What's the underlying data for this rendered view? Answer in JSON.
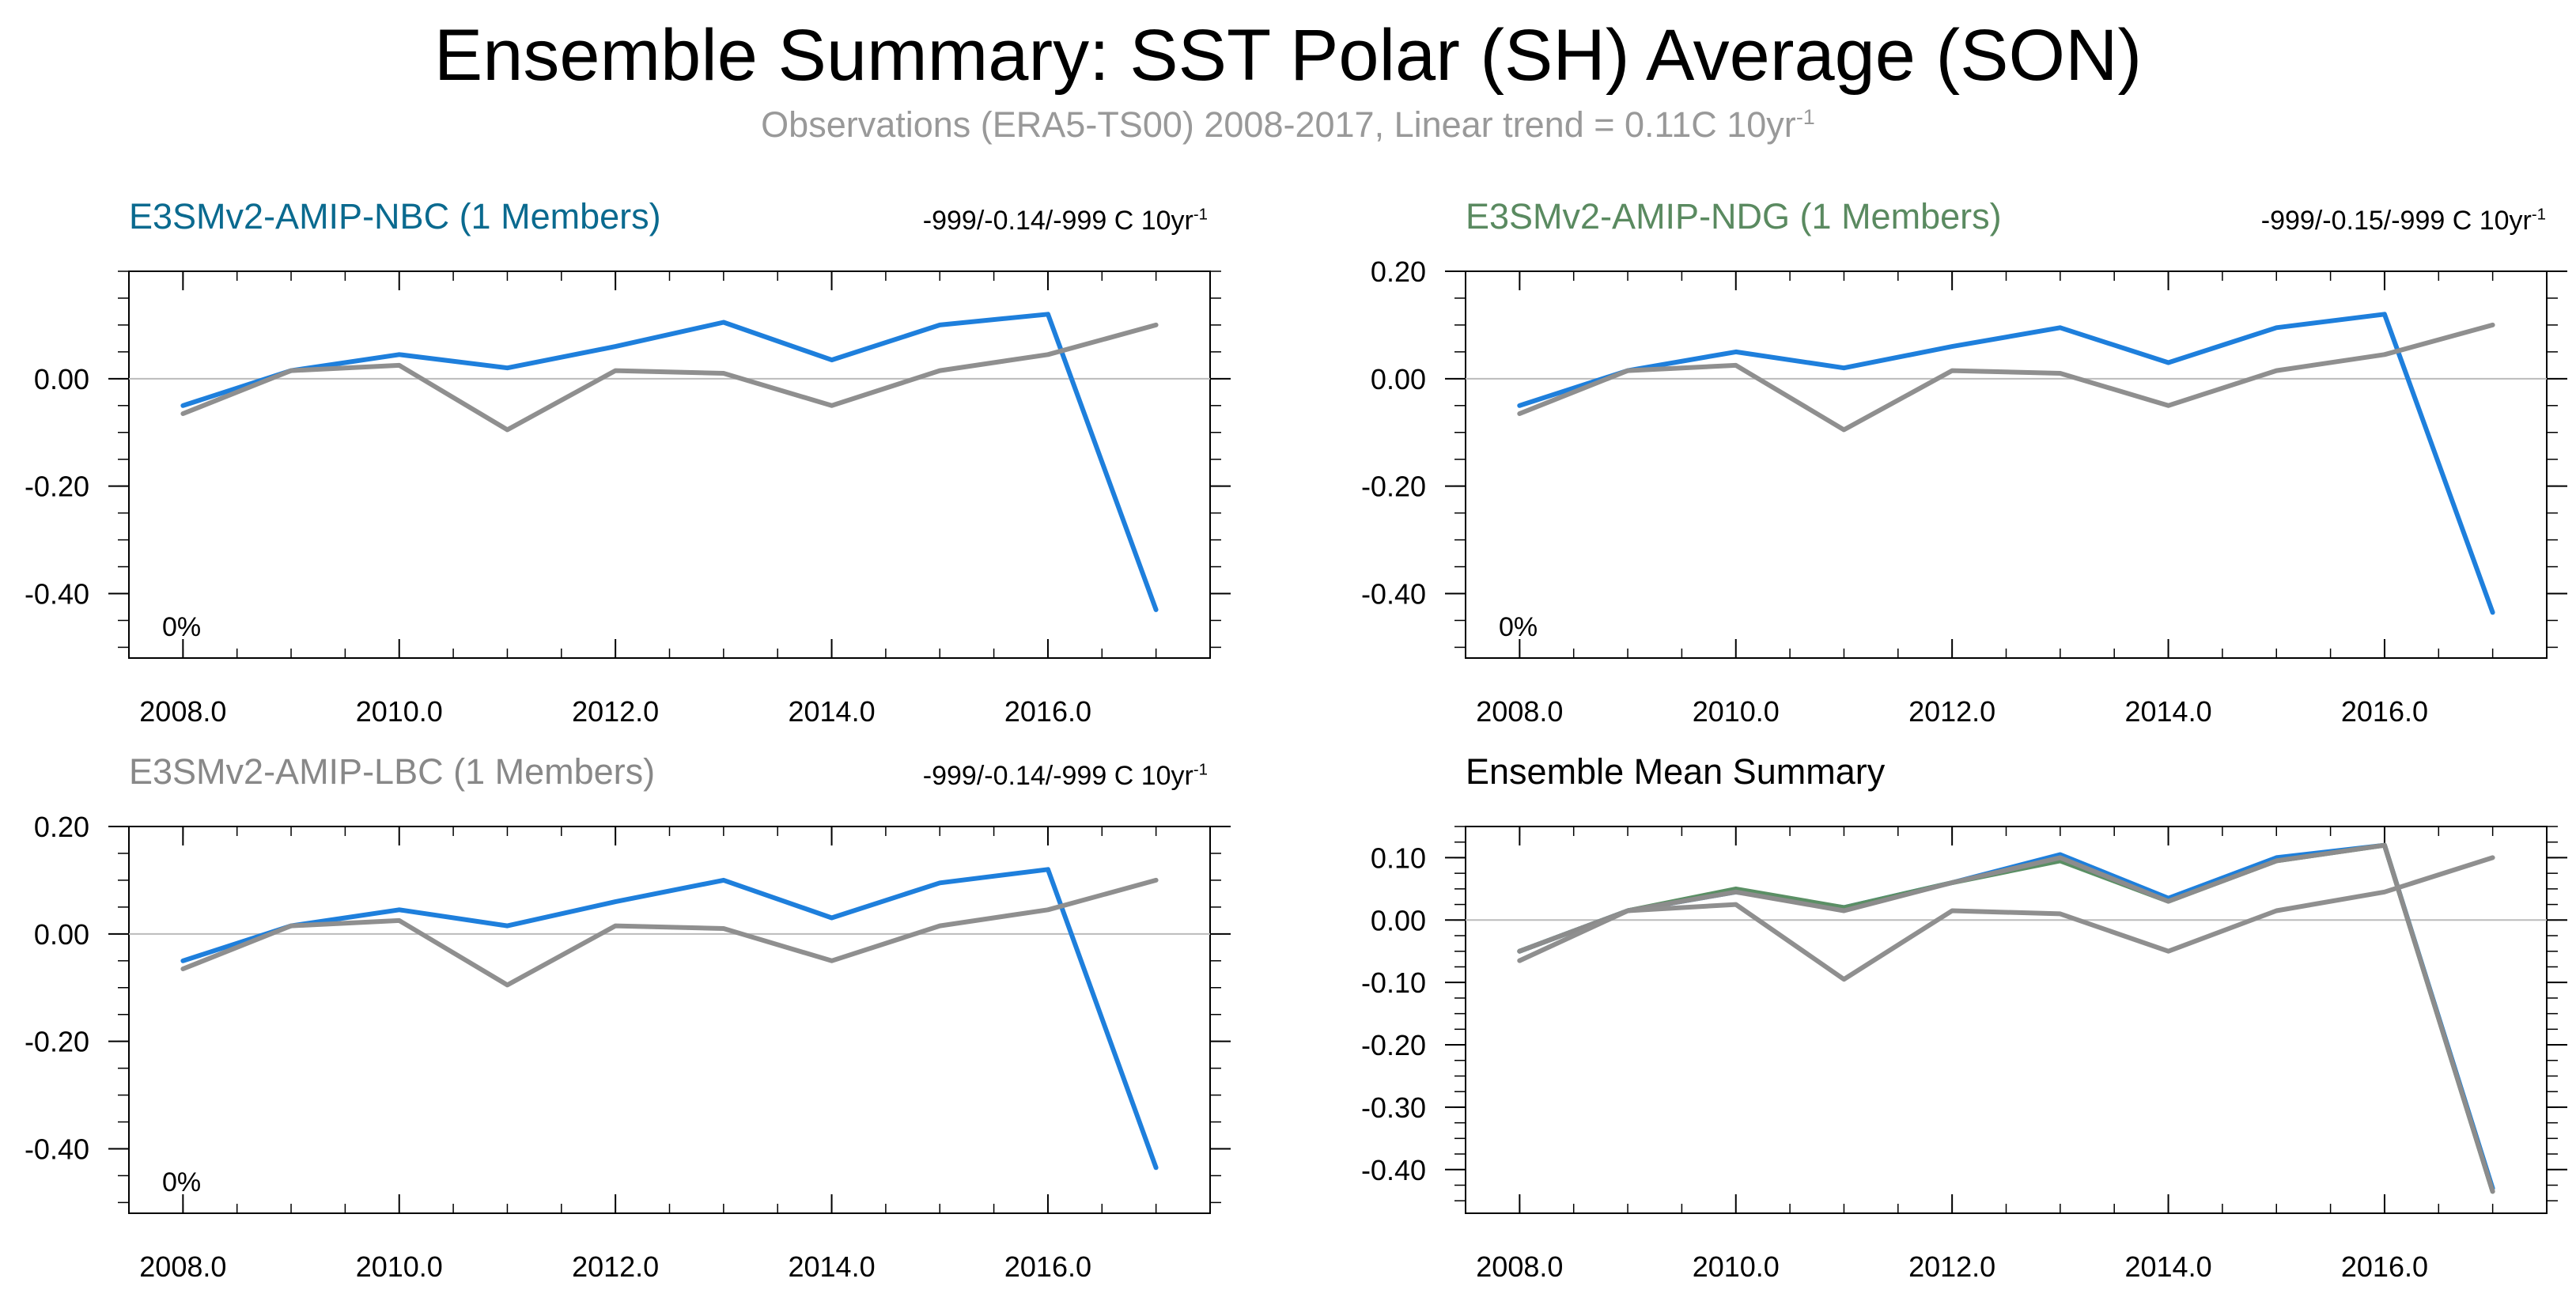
{
  "title": "Ensemble Summary: SST Polar (SH) Average (SON)",
  "subtitle": {
    "text": "Observations (ERA5-TS00) 2008-2017, Linear trend = 0.11C 10yr",
    "exponent": "-1"
  },
  "colors": {
    "nbc": "#1e7fdc",
    "ndg": "#5a8f64",
    "lbc": "#8c8c8c",
    "obs": "#8f8f8f",
    "nbc_title": "#0a6a8f",
    "ndg_title": "#5a8a60",
    "lbc_title": "#888888",
    "mean_title": "#000000"
  },
  "panels": [
    {
      "title": "E3SMv2-AMIP-NBC (1 Members)",
      "stat": "-999/-0.14/-999 C 10yr",
      "stat_exp": "-1",
      "percent": "0%"
    },
    {
      "title": "E3SMv2-AMIP-NDG (1 Members)",
      "stat": "-999/-0.15/-999 C 10yr",
      "stat_exp": "-1",
      "percent": "0%"
    },
    {
      "title": "E3SMv2-AMIP-LBC (1 Members)",
      "stat": "-999/-0.14/-999 C 10yr",
      "stat_exp": "-1",
      "percent": "0%"
    },
    {
      "title": "Ensemble Mean Summary",
      "stat": "",
      "stat_exp": "",
      "percent": ""
    }
  ],
  "chart_data": [
    {
      "type": "line",
      "title": "E3SMv2-AMIP-NBC (1 Members)",
      "x": [
        2008,
        2009,
        2010,
        2011,
        2012,
        2013,
        2014,
        2015,
        2016,
        2017
      ],
      "xticks": [
        "2008.0",
        "2010.0",
        "2012.0",
        "2014.0",
        "2016.0"
      ],
      "yticks": [
        "0.00",
        "-0.20",
        "-0.40"
      ],
      "ylim": [
        -0.52,
        0.2
      ],
      "series": [
        {
          "name": "",
          "values": [
            -0.05,
            0.015,
            0.045,
            0.02,
            0.06,
            0.105,
            0.035,
            0.1,
            0.12,
            -0.43
          ]
        },
        {
          "name": "",
          "values": [
            -0.065,
            0.015,
            0.025,
            -0.095,
            0.015,
            0.01,
            -0.05,
            0.015,
            0.045,
            0.1
          ]
        }
      ]
    },
    {
      "type": "line",
      "title": "E3SMv2-AMIP-NDG (1 Members)",
      "x": [
        2008,
        2009,
        2010,
        2011,
        2012,
        2013,
        2014,
        2015,
        2016,
        2017
      ],
      "xticks": [
        "2008.0",
        "2010.0",
        "2012.0",
        "2014.0",
        "2016.0"
      ],
      "yticks": [
        "0.20",
        "0.00",
        "-0.20",
        "-0.40"
      ],
      "ylim": [
        -0.52,
        0.2
      ],
      "series": [
        {
          "name": "",
          "values": [
            -0.05,
            0.015,
            0.05,
            0.02,
            0.06,
            0.095,
            0.03,
            0.095,
            0.12,
            -0.435
          ]
        },
        {
          "name": "",
          "values": [
            -0.065,
            0.015,
            0.025,
            -0.095,
            0.015,
            0.01,
            -0.05,
            0.015,
            0.045,
            0.1
          ]
        }
      ]
    },
    {
      "type": "line",
      "title": "E3SMv2-AMIP-LBC (1 Members)",
      "x": [
        2008,
        2009,
        2010,
        2011,
        2012,
        2013,
        2014,
        2015,
        2016,
        2017
      ],
      "xticks": [
        "2008.0",
        "2010.0",
        "2012.0",
        "2014.0",
        "2016.0"
      ],
      "yticks": [
        "0.20",
        "0.00",
        "-0.20",
        "-0.40"
      ],
      "ylim": [
        -0.52,
        0.2
      ],
      "series": [
        {
          "name": "",
          "values": [
            -0.05,
            0.015,
            0.045,
            0.015,
            0.06,
            0.1,
            0.03,
            0.095,
            0.12,
            -0.435
          ]
        },
        {
          "name": "",
          "values": [
            -0.065,
            0.015,
            0.025,
            -0.095,
            0.015,
            0.01,
            -0.05,
            0.015,
            0.045,
            0.1
          ]
        }
      ]
    },
    {
      "type": "line",
      "title": "Ensemble Mean Summary",
      "x": [
        2008,
        2009,
        2010,
        2011,
        2012,
        2013,
        2014,
        2015,
        2016,
        2017
      ],
      "xticks": [
        "2008.0",
        "2010.0",
        "2012.0",
        "2014.0",
        "2016.0"
      ],
      "yticks": [
        "0.10",
        "0.00",
        "-0.10",
        "-0.20",
        "-0.30",
        "-0.40"
      ],
      "ylim": [
        -0.47,
        0.15
      ],
      "series": [
        {
          "name": "",
          "values": [
            -0.05,
            0.015,
            0.045,
            0.02,
            0.06,
            0.105,
            0.035,
            0.1,
            0.12,
            -0.43
          ]
        },
        {
          "name": "",
          "values": [
            -0.05,
            0.015,
            0.05,
            0.02,
            0.06,
            0.095,
            0.03,
            0.095,
            0.12,
            -0.435
          ]
        },
        {
          "name": "",
          "values": [
            -0.05,
            0.015,
            0.045,
            0.015,
            0.06,
            0.1,
            0.03,
            0.095,
            0.12,
            -0.435
          ]
        },
        {
          "name": "",
          "values": [
            -0.065,
            0.015,
            0.025,
            -0.095,
            0.015,
            0.01,
            -0.05,
            0.015,
            0.045,
            0.1
          ]
        }
      ]
    }
  ]
}
